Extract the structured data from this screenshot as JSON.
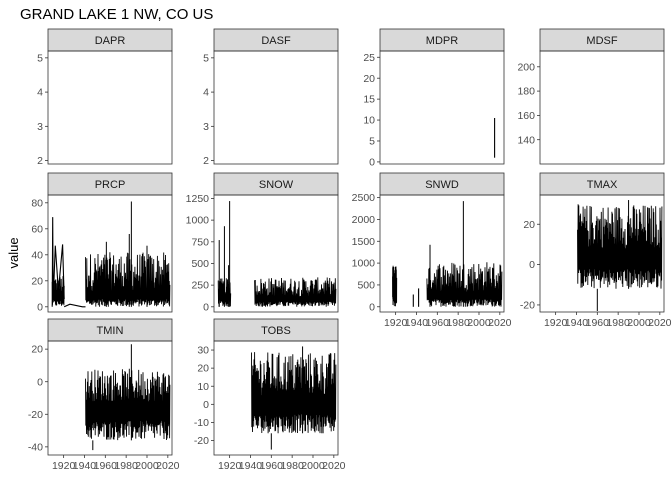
{
  "title": "GRAND LAKE 1 NW, CO US",
  "chart_data": {
    "type": "line",
    "title": "GRAND LAKE 1 NW, CO US",
    "ylabel": "value",
    "xlabel": "",
    "x_ticks": [
      "1920",
      "1940",
      "1960",
      "1980",
      "2000",
      "2020"
    ],
    "xlim": [
      1905,
      2024
    ],
    "grid": false,
    "layout": "facet-wrap 4 columns, free y scales",
    "panels": [
      {
        "name": "DAPR",
        "ylim": [
          1.9,
          5.2
        ],
        "y_ticks": [
          "2",
          "3",
          "4",
          "5"
        ],
        "segments": [],
        "dense": [],
        "show_x_axis": false
      },
      {
        "name": "DASF",
        "ylim": [
          1.9,
          5.2
        ],
        "y_ticks": [
          "2",
          "3",
          "4",
          "5"
        ],
        "segments": [],
        "dense": [],
        "show_x_axis": false
      },
      {
        "name": "MDPR",
        "ylim": [
          -0.5,
          26.5
        ],
        "y_ticks": [
          "0",
          "5",
          "10",
          "15",
          "20",
          "25"
        ],
        "segments": [
          {
            "x": [
              2015,
              2015
            ],
            "y": [
              1,
              10.5
            ]
          }
        ],
        "dense": [],
        "show_x_axis": false
      },
      {
        "name": "MDSF",
        "ylim": [
          120,
          213
        ],
        "y_ticks": [
          "140",
          "160",
          "180",
          "200"
        ],
        "segments": [],
        "dense": [],
        "show_x_axis": false
      },
      {
        "name": "PRCP",
        "ylim": [
          -4,
          86
        ],
        "y_ticks": [
          "0",
          "20",
          "40",
          "60",
          "80"
        ],
        "segments": [
          {
            "x": [
              1909,
              1909.5,
              1910,
              1912,
              1915,
              1917,
              1919,
              1920.5
            ],
            "y": [
              0,
              69,
              5,
              47,
              12,
              30,
              48,
              6
            ]
          },
          {
            "x": [
              1920.5,
              1926,
              1938,
              1941
            ],
            "y": [
              0,
              2,
              0,
              0
            ]
          }
        ],
        "dense": [
          {
            "x0": 1909,
            "x1": 1920.5,
            "low": 0,
            "base": 10,
            "spread": 14
          },
          {
            "x0": 1941,
            "x1": 2022,
            "low": 0,
            "base": 12,
            "spread": 30
          }
        ],
        "spikes": [
          {
            "x": 1985,
            "y": 81
          },
          {
            "x": 1983,
            "y": 56
          },
          {
            "x": 1961,
            "y": 50
          },
          {
            "x": 2000,
            "y": 47
          }
        ],
        "show_x_axis": false
      },
      {
        "name": "SNOW",
        "ylim": [
          -60,
          1290
        ],
        "y_ticks": [
          "0",
          "250",
          "500",
          "750",
          "1000",
          "1250"
        ],
        "segments": [],
        "dense": [
          {
            "x0": 1909,
            "x1": 1921,
            "low": 0,
            "base": 150,
            "spread": 180
          },
          {
            "x0": 1944,
            "x1": 2022,
            "low": 0,
            "base": 120,
            "spread": 220
          }
        ],
        "spikes": [
          {
            "x": 1910,
            "y": 770
          },
          {
            "x": 1915,
            "y": 930
          },
          {
            "x": 1920,
            "y": 1220
          },
          {
            "x": 1919,
            "y": 480
          }
        ],
        "show_x_axis": false
      },
      {
        "name": "SNWD",
        "ylim": [
          -120,
          2560
        ],
        "y_ticks": [
          "0",
          "500",
          "1000",
          "1500",
          "2000",
          "2500"
        ],
        "segments": [
          {
            "x": [
              1937,
              1937
            ],
            "y": [
              0,
              280
            ]
          },
          {
            "x": [
              1942,
              1942
            ],
            "y": [
              0,
              420
            ]
          }
        ],
        "dense": [
          {
            "x0": 1917,
            "x1": 1921,
            "low": 0,
            "base": 500,
            "spread": 450
          },
          {
            "x0": 1950,
            "x1": 2022,
            "low": 0,
            "base": 350,
            "spread": 700
          }
        ],
        "spikes": [
          {
            "x": 1985,
            "y": 2420
          },
          {
            "x": 1953,
            "y": 1420
          }
        ],
        "show_x_axis": true
      },
      {
        "name": "TMAX",
        "ylim": [
          -23.5,
          34.5
        ],
        "y_ticks": [
          "-20",
          "0",
          "20"
        ],
        "segments": [],
        "dense": [
          {
            "x0": 1941,
            "x1": 2022,
            "low": -12,
            "base": 8,
            "spread": 22
          }
        ],
        "spikes": [
          {
            "x": 1960,
            "y": -23
          },
          {
            "x": 1990,
            "y": 32
          }
        ],
        "show_x_axis": true
      },
      {
        "name": "TMIN",
        "ylim": [
          -45,
          25
        ],
        "y_ticks": [
          "-40",
          "-20",
          "0",
          "20"
        ],
        "segments": [],
        "dense": [
          {
            "x0": 1941,
            "x1": 2022,
            "low": -36,
            "base": -12,
            "spread": 20
          }
        ],
        "spikes": [
          {
            "x": 1985,
            "y": 23
          },
          {
            "x": 1948,
            "y": -42
          }
        ],
        "show_x_axis": true
      },
      {
        "name": "TOBS",
        "ylim": [
          -28,
          35
        ],
        "y_ticks": [
          "-20",
          "-10",
          "0",
          "10",
          "20",
          "30"
        ],
        "segments": [],
        "dense": [
          {
            "x0": 1941,
            "x1": 2022,
            "low": -16,
            "base": 5,
            "spread": 24
          }
        ],
        "spikes": [
          {
            "x": 1960,
            "y": -25
          },
          {
            "x": 1990,
            "y": 32
          }
        ],
        "show_x_axis": true
      }
    ]
  }
}
